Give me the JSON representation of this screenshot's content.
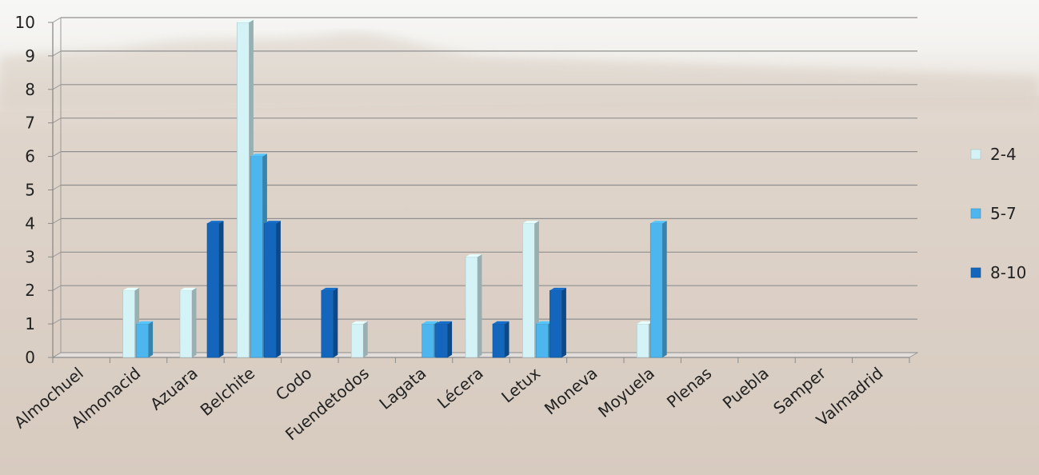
{
  "chart_data": {
    "type": "bar",
    "title": "",
    "xlabel": "",
    "ylabel": "",
    "categories": [
      "Almochuel",
      "Almonacid",
      "Azuara",
      "Belchite",
      "Codo",
      "Fuendetodos",
      "Lagata",
      "Lécera",
      "Letux",
      "Moneva",
      "Moyuela",
      "Plenas",
      "Puebla",
      "Samper",
      "Valmadrid"
    ],
    "series": [
      {
        "name": "2-4",
        "color": "#d4f3f7",
        "values": [
          0,
          2,
          2,
          10,
          0,
          1,
          0,
          3,
          4,
          0,
          1,
          0,
          0,
          0,
          0
        ]
      },
      {
        "name": "5-7",
        "color": "#4eb6ee",
        "values": [
          0,
          1,
          0,
          6,
          0,
          0,
          1,
          0,
          1,
          0,
          4,
          0,
          0,
          0,
          0
        ]
      },
      {
        "name": "8-10",
        "color": "#1466bc",
        "values": [
          0,
          0,
          4,
          4,
          2,
          0,
          1,
          1,
          2,
          0,
          0,
          0,
          0,
          0,
          0
        ]
      }
    ],
    "ylim": [
      0,
      10
    ],
    "yticks": [
      0,
      1,
      2,
      3,
      4,
      5,
      6,
      7,
      8,
      9,
      10
    ],
    "grid": true,
    "legend_position": "right",
    "style": "3d-clustered-column"
  }
}
